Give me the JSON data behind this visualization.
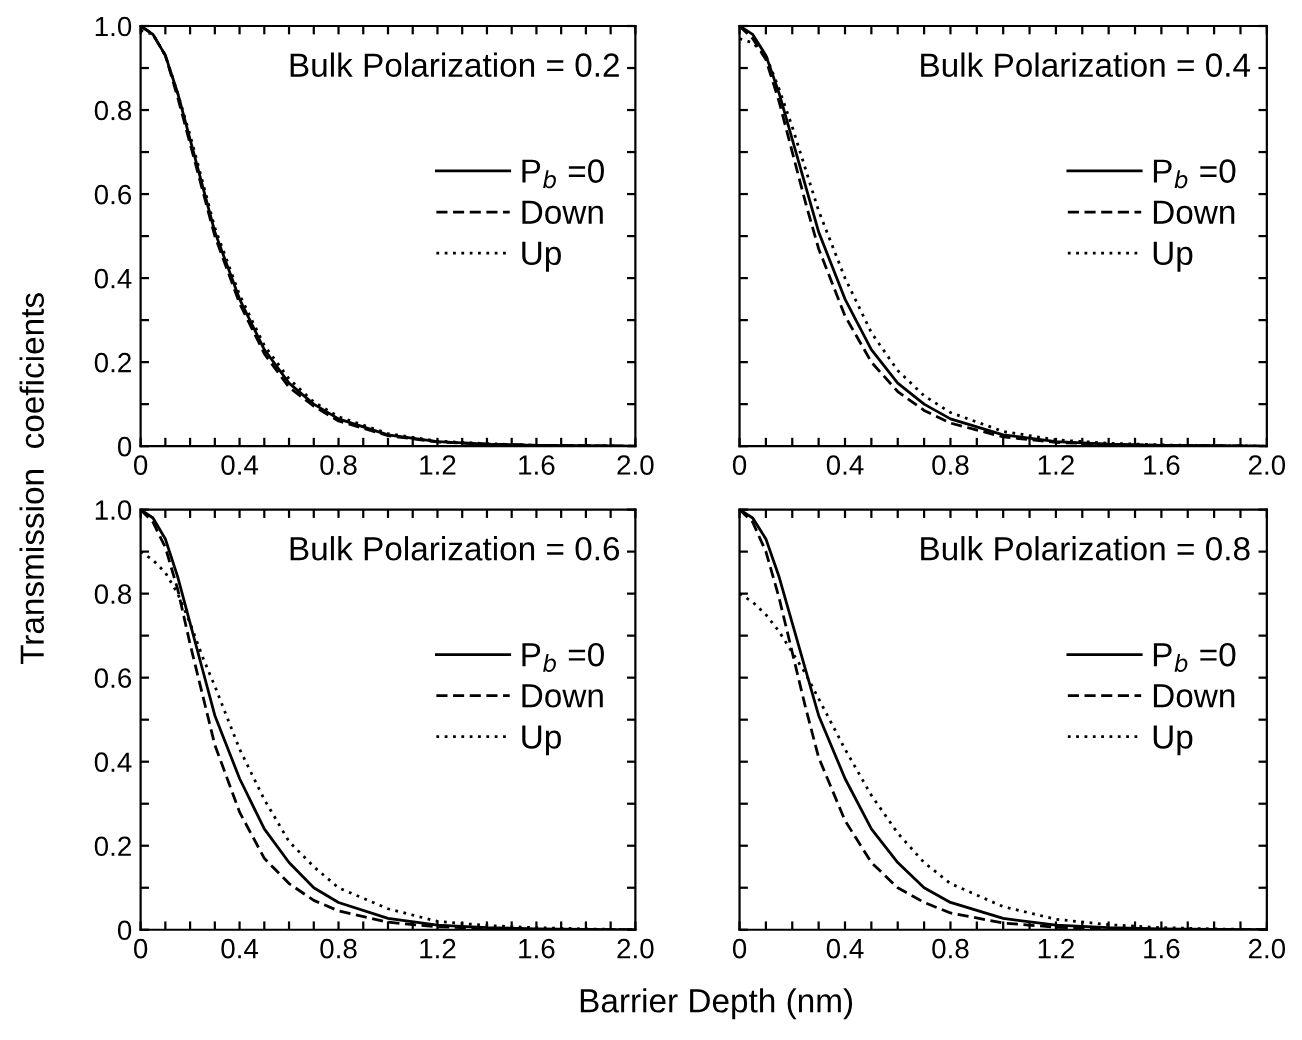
{
  "chart_data": [
    {
      "type": "line",
      "title": "Bulk Polarization = 0.2",
      "xlabel": "Barrier Depth (nm)",
      "ylabel": "Transmission  coeficients",
      "x": [
        0,
        0.05,
        0.1,
        0.15,
        0.2,
        0.25,
        0.3,
        0.4,
        0.5,
        0.6,
        0.7,
        0.8,
        1.0,
        1.2,
        1.4,
        1.6,
        1.8,
        2.0
      ],
      "series": [
        {
          "name": "P$_{b}$ =0",
          "color": "#000000",
          "line_style": "solid",
          "values": [
            1.0,
            0.98,
            0.93,
            0.84,
            0.73,
            0.62,
            0.51,
            0.35,
            0.23,
            0.15,
            0.1,
            0.065,
            0.027,
            0.011,
            0.005,
            0.002,
            0.001,
            0
          ]
        },
        {
          "name": "Down",
          "color": "#000000",
          "line_style": "dashed",
          "values": [
            1.0,
            0.98,
            0.93,
            0.83,
            0.72,
            0.61,
            0.5,
            0.34,
            0.22,
            0.14,
            0.095,
            0.06,
            0.025,
            0.01,
            0.005,
            0.002,
            0.001,
            0
          ]
        },
        {
          "name": "Up",
          "color": "#000000",
          "line_style": "dotted",
          "values": [
            0.99,
            0.98,
            0.93,
            0.84,
            0.74,
            0.63,
            0.52,
            0.36,
            0.24,
            0.16,
            0.105,
            0.07,
            0.03,
            0.012,
            0.006,
            0.002,
            0.001,
            0
          ]
        }
      ],
      "xlim": [
        0,
        2.0
      ],
      "ylim": [
        0,
        1.0
      ],
      "xticks": [
        0,
        {
          "value": 0.1,
          "label": null
        },
        {
          "value": 0.2,
          "label": null
        },
        {
          "value": 0.3,
          "label": null
        },
        0.4,
        {
          "value": 0.5,
          "label": null
        },
        {
          "value": 0.6,
          "label": null
        },
        {
          "value": 0.7,
          "label": null
        },
        0.8,
        {
          "value": 0.9,
          "label": null
        },
        {
          "value": 1.0,
          "label": null
        },
        {
          "value": 1.1,
          "label": null
        },
        1.2,
        {
          "value": 1.3,
          "label": null
        },
        {
          "value": 1.4,
          "label": null
        },
        {
          "value": 1.5,
          "label": null
        },
        1.6,
        {
          "value": 1.7,
          "label": null
        },
        {
          "value": 1.8,
          "label": null
        },
        {
          "value": 1.9,
          "label": null
        },
        {
          "value": 2.0,
          "label": "2.0"
        }
      ],
      "yticks": [
        0,
        {
          "value": 0.1,
          "label": null
        },
        0.2,
        {
          "value": 0.3,
          "label": null
        },
        0.4,
        {
          "value": 0.5,
          "label": null
        },
        0.6,
        {
          "value": 0.7,
          "label": null
        },
        0.8,
        {
          "value": 0.9,
          "label": null
        },
        {
          "value": 1.0,
          "label": "1.0"
        }
      ],
      "legend": "right",
      "grid": false
    },
    {
      "type": "line",
      "title": "Bulk Polarization = 0.4",
      "x": [
        0,
        0.05,
        0.1,
        0.15,
        0.2,
        0.25,
        0.3,
        0.4,
        0.5,
        0.6,
        0.7,
        0.8,
        1.0,
        1.2,
        1.4,
        1.6,
        1.8,
        2.0
      ],
      "series": [
        {
          "name": "P$_{b}$ =0",
          "color": "#000000",
          "line_style": "solid",
          "values": [
            1.0,
            0.98,
            0.93,
            0.84,
            0.73,
            0.62,
            0.51,
            0.35,
            0.23,
            0.15,
            0.1,
            0.065,
            0.027,
            0.011,
            0.005,
            0.002,
            0.001,
            0
          ]
        },
        {
          "name": "Down",
          "color": "#000000",
          "line_style": "dashed",
          "values": [
            1.0,
            0.97,
            0.92,
            0.82,
            0.7,
            0.58,
            0.47,
            0.31,
            0.2,
            0.13,
            0.085,
            0.055,
            0.022,
            0.009,
            0.004,
            0.002,
            0.001,
            0
          ]
        },
        {
          "name": "Up",
          "color": "#000000",
          "line_style": "dotted",
          "values": [
            0.97,
            0.96,
            0.93,
            0.85,
            0.76,
            0.66,
            0.56,
            0.4,
            0.27,
            0.18,
            0.12,
            0.08,
            0.035,
            0.015,
            0.007,
            0.003,
            0.001,
            0
          ]
        }
      ],
      "xlim": [
        0,
        2.0
      ],
      "ylim": [
        0,
        1.0
      ],
      "xticks": [
        0,
        {
          "value": 0.1,
          "label": null
        },
        {
          "value": 0.2,
          "label": null
        },
        {
          "value": 0.3,
          "label": null
        },
        0.4,
        {
          "value": 0.5,
          "label": null
        },
        {
          "value": 0.6,
          "label": null
        },
        {
          "value": 0.7,
          "label": null
        },
        0.8,
        {
          "value": 0.9,
          "label": null
        },
        {
          "value": 1.0,
          "label": null
        },
        {
          "value": 1.1,
          "label": null
        },
        1.2,
        {
          "value": 1.3,
          "label": null
        },
        {
          "value": 1.4,
          "label": null
        },
        {
          "value": 1.5,
          "label": null
        },
        1.6,
        {
          "value": 1.7,
          "label": null
        },
        {
          "value": 1.8,
          "label": null
        },
        {
          "value": 1.9,
          "label": null
        },
        {
          "value": 2.0,
          "label": "2.0"
        }
      ],
      "yticks": [
        {
          "value": 0,
          "label": null
        },
        {
          "value": 0.1,
          "label": null
        },
        {
          "value": 0.2,
          "label": null
        },
        {
          "value": 0.3,
          "label": null
        },
        {
          "value": 0.4,
          "label": null
        },
        {
          "value": 0.5,
          "label": null
        },
        {
          "value": 0.6,
          "label": null
        },
        {
          "value": 0.7,
          "label": null
        },
        {
          "value": 0.8,
          "label": null
        },
        {
          "value": 0.9,
          "label": null
        },
        {
          "value": 1.0,
          "label": null
        }
      ],
      "tick_labels": "x",
      "legend": "right",
      "grid": false
    },
    {
      "type": "line",
      "title": "Bulk Polarization = 0.6",
      "x": [
        0,
        0.05,
        0.1,
        0.15,
        0.2,
        0.25,
        0.3,
        0.4,
        0.5,
        0.6,
        0.7,
        0.8,
        1.0,
        1.2,
        1.4,
        1.6,
        1.8,
        2.0
      ],
      "series": [
        {
          "name": "P$_{b}$ =0",
          "color": "#000000",
          "line_style": "solid",
          "values": [
            1.0,
            0.98,
            0.93,
            0.84,
            0.73,
            0.62,
            0.51,
            0.36,
            0.24,
            0.16,
            0.1,
            0.065,
            0.027,
            0.011,
            0.005,
            0.002,
            0.001,
            0
          ]
        },
        {
          "name": "Down",
          "color": "#000000",
          "line_style": "dashed",
          "values": [
            1.0,
            0.97,
            0.91,
            0.81,
            0.68,
            0.56,
            0.44,
            0.28,
            0.17,
            0.11,
            0.07,
            0.045,
            0.018,
            0.007,
            0.003,
            0.001,
            0,
            0
          ]
        },
        {
          "name": "Up",
          "color": "#000000",
          "line_style": "dotted",
          "values": [
            0.9,
            0.88,
            0.85,
            0.8,
            0.73,
            0.65,
            0.58,
            0.43,
            0.31,
            0.21,
            0.15,
            0.1,
            0.05,
            0.02,
            0.01,
            0.005,
            0.002,
            0
          ]
        }
      ],
      "xlim": [
        0,
        2.0
      ],
      "ylim": [
        0,
        1.0
      ],
      "xticks": [
        0,
        {
          "value": 0.1,
          "label": null
        },
        {
          "value": 0.2,
          "label": null
        },
        {
          "value": 0.3,
          "label": null
        },
        0.4,
        {
          "value": 0.5,
          "label": null
        },
        {
          "value": 0.6,
          "label": null
        },
        {
          "value": 0.7,
          "label": null
        },
        0.8,
        {
          "value": 0.9,
          "label": null
        },
        {
          "value": 1.0,
          "label": null
        },
        {
          "value": 1.1,
          "label": null
        },
        1.2,
        {
          "value": 1.3,
          "label": null
        },
        {
          "value": 1.4,
          "label": null
        },
        {
          "value": 1.5,
          "label": null
        },
        1.6,
        {
          "value": 1.7,
          "label": null
        },
        {
          "value": 1.8,
          "label": null
        },
        {
          "value": 1.9,
          "label": null
        },
        {
          "value": 2.0,
          "label": "2.0"
        }
      ],
      "yticks": [
        0,
        {
          "value": 0.1,
          "label": null
        },
        0.2,
        {
          "value": 0.3,
          "label": null
        },
        0.4,
        {
          "value": 0.5,
          "label": null
        },
        0.6,
        {
          "value": 0.7,
          "label": null
        },
        0.8,
        {
          "value": 0.9,
          "label": null
        },
        {
          "value": 1.0,
          "label": "1.0"
        }
      ],
      "legend": "right",
      "grid": false
    },
    {
      "type": "line",
      "title": "Bulk Polarization = 0.8",
      "x": [
        0,
        0.05,
        0.1,
        0.15,
        0.2,
        0.25,
        0.3,
        0.4,
        0.5,
        0.6,
        0.7,
        0.8,
        1.0,
        1.2,
        1.4,
        1.6,
        1.8,
        2.0
      ],
      "series": [
        {
          "name": "P$_{b}$ =0",
          "color": "#000000",
          "line_style": "solid",
          "values": [
            1.0,
            0.98,
            0.93,
            0.84,
            0.73,
            0.62,
            0.51,
            0.36,
            0.24,
            0.16,
            0.1,
            0.065,
            0.027,
            0.011,
            0.005,
            0.002,
            0.001,
            0
          ]
        },
        {
          "name": "Down",
          "color": "#000000",
          "line_style": "dashed",
          "values": [
            1.0,
            0.97,
            0.9,
            0.79,
            0.66,
            0.53,
            0.41,
            0.26,
            0.16,
            0.1,
            0.065,
            0.04,
            0.016,
            0.006,
            0.003,
            0.001,
            0,
            0
          ]
        },
        {
          "name": "Up",
          "color": "#000000",
          "line_style": "dotted",
          "values": [
            0.8,
            0.78,
            0.75,
            0.71,
            0.66,
            0.61,
            0.55,
            0.43,
            0.32,
            0.23,
            0.16,
            0.11,
            0.055,
            0.025,
            0.012,
            0.005,
            0.002,
            0
          ]
        }
      ],
      "xlim": [
        0,
        2.0
      ],
      "ylim": [
        0,
        1.0
      ],
      "xticks": [
        0,
        {
          "value": 0.1,
          "label": null
        },
        {
          "value": 0.2,
          "label": null
        },
        {
          "value": 0.3,
          "label": null
        },
        0.4,
        {
          "value": 0.5,
          "label": null
        },
        {
          "value": 0.6,
          "label": null
        },
        {
          "value": 0.7,
          "label": null
        },
        0.8,
        {
          "value": 0.9,
          "label": null
        },
        {
          "value": 1.0,
          "label": null
        },
        {
          "value": 1.1,
          "label": null
        },
        1.2,
        {
          "value": 1.3,
          "label": null
        },
        {
          "value": 1.4,
          "label": null
        },
        {
          "value": 1.5,
          "label": null
        },
        1.6,
        {
          "value": 1.7,
          "label": null
        },
        {
          "value": 1.8,
          "label": null
        },
        {
          "value": 1.9,
          "label": null
        },
        {
          "value": 2.0,
          "label": "2.0"
        }
      ],
      "yticks": [
        {
          "value": 0,
          "label": null
        },
        {
          "value": 0.1,
          "label": null
        },
        {
          "value": 0.2,
          "label": null
        },
        {
          "value": 0.3,
          "label": null
        },
        {
          "value": 0.4,
          "label": null
        },
        {
          "value": 0.5,
          "label": null
        },
        {
          "value": 0.6,
          "label": null
        },
        {
          "value": 0.7,
          "label": null
        },
        {
          "value": 0.8,
          "label": null
        },
        {
          "value": 0.9,
          "label": null
        },
        {
          "value": 1.0,
          "label": null
        }
      ],
      "tick_labels": "x",
      "legend": "right",
      "grid": false
    }
  ]
}
